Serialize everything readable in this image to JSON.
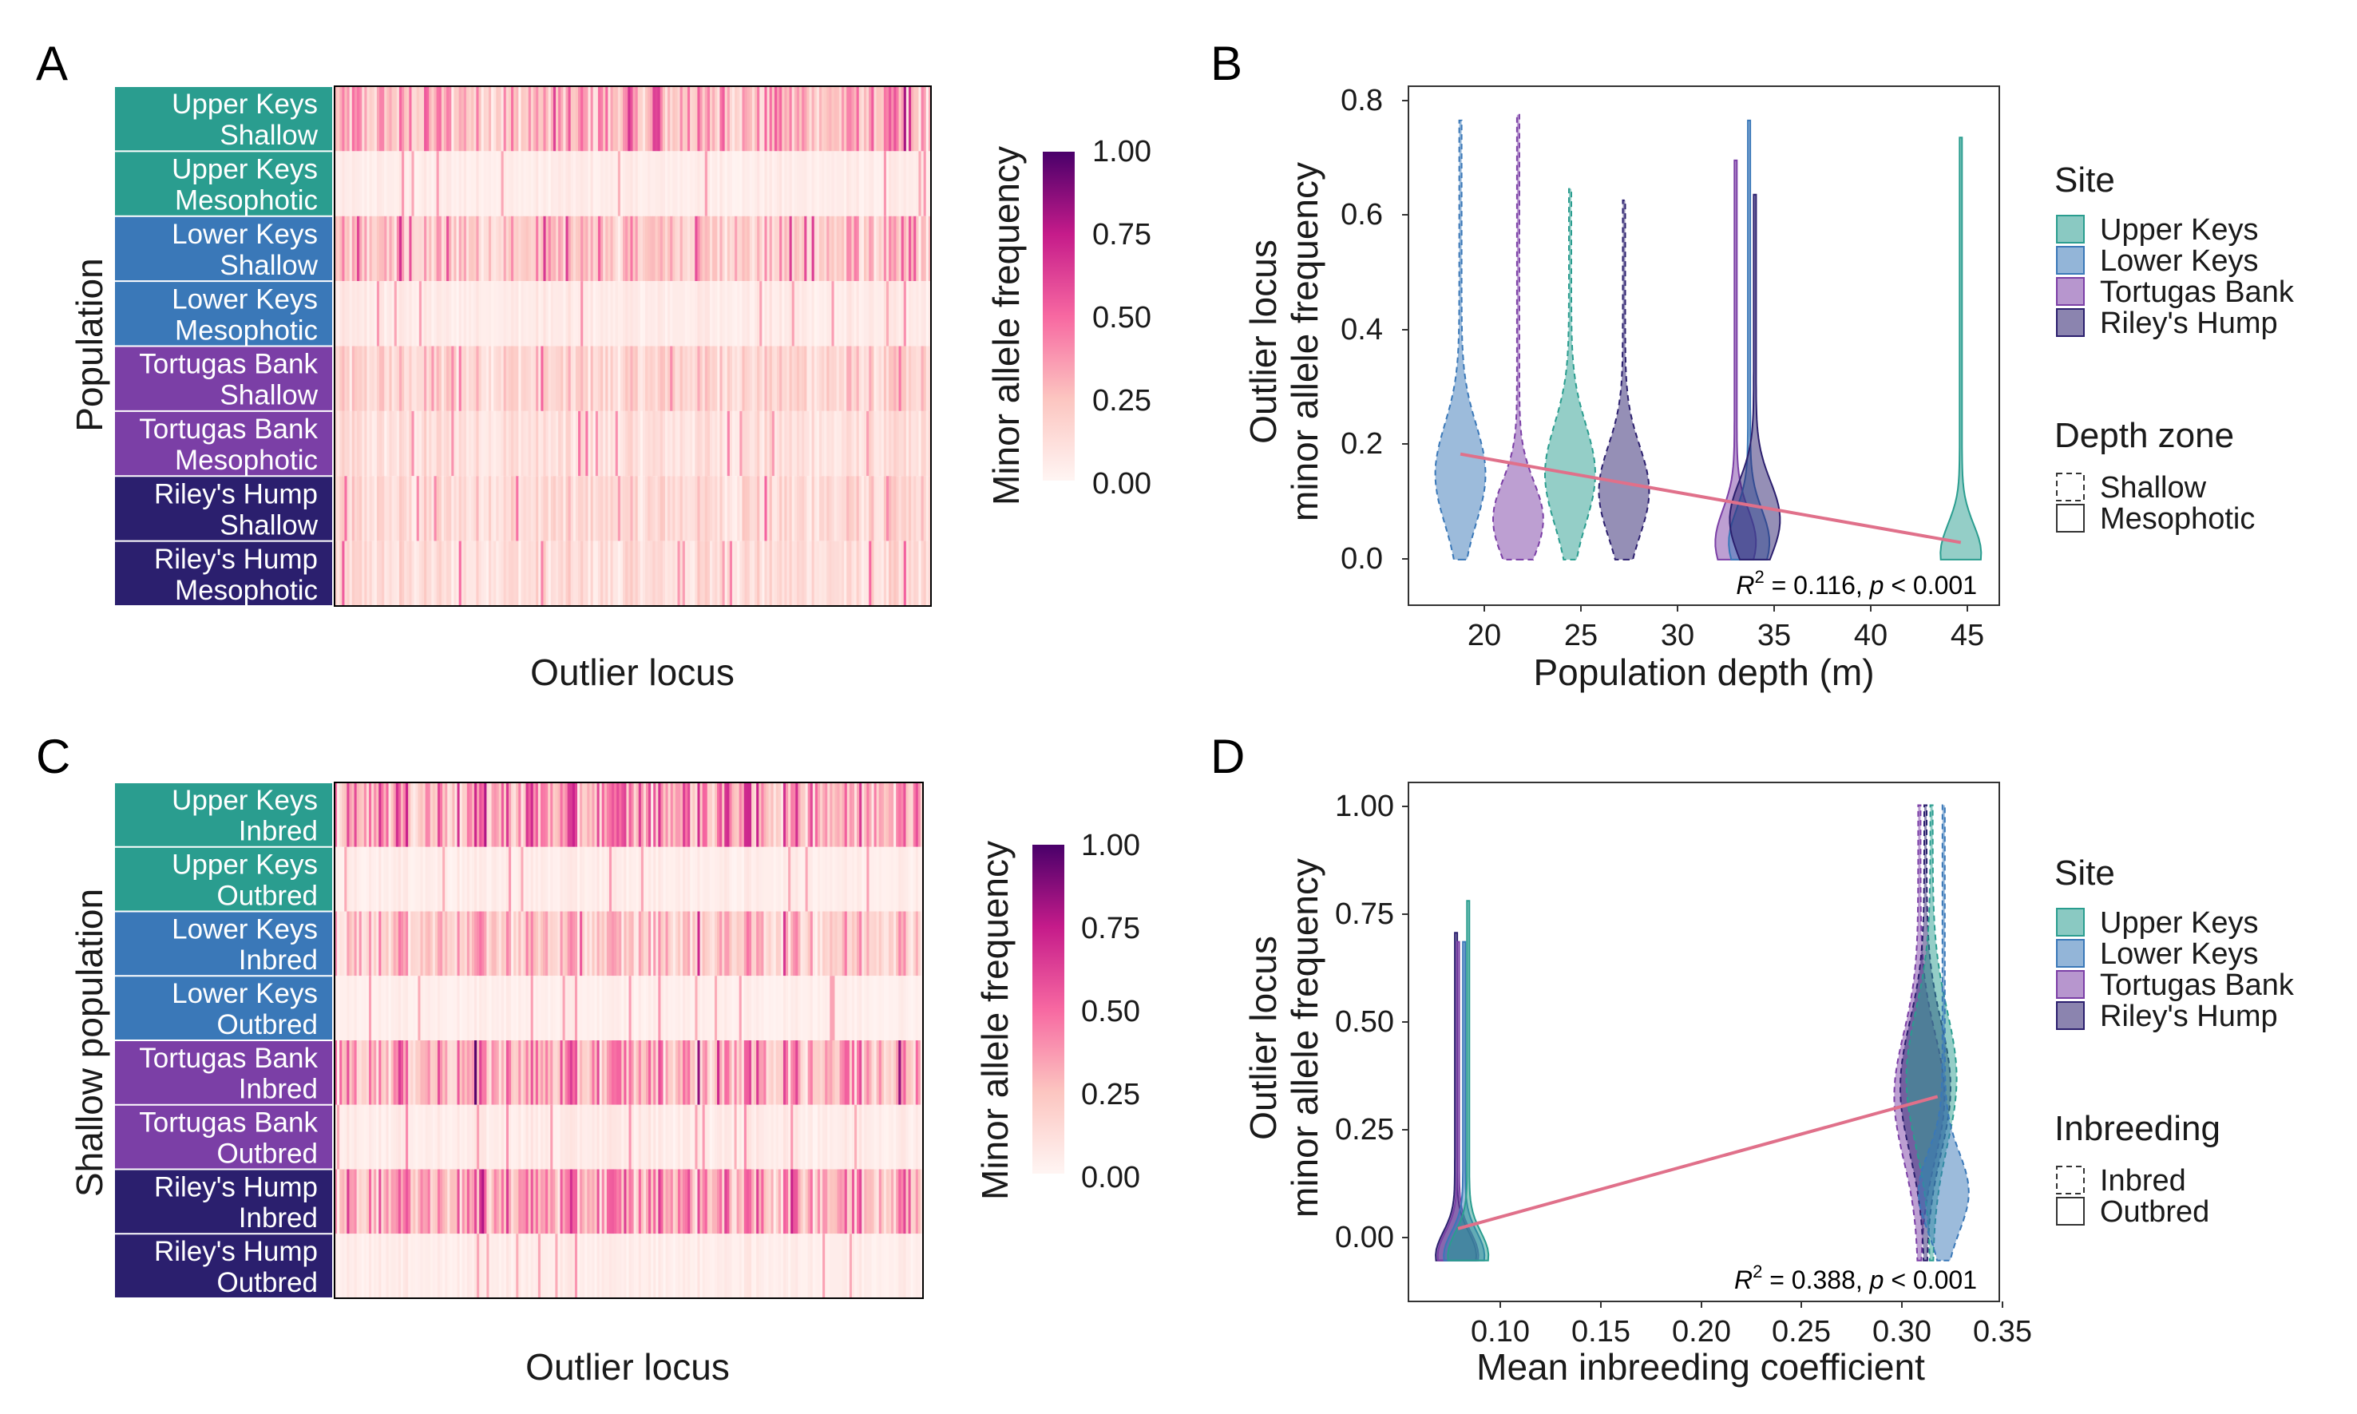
{
  "colors": {
    "site": {
      "Upper Keys": "#2a9d8f",
      "Lower Keys": "#3a78b8",
      "Tortugas Bank": "#7b3fa6",
      "Riley's Hump": "#2b1f6e"
    },
    "heat_low": "#fff5f3",
    "heat_mid": "#ef5f9e",
    "heat_high": "#49006a",
    "fit_line": "#e0708a"
  },
  "panels": {
    "A": {
      "letter": "A",
      "rows": [
        {
          "site": "Upper Keys",
          "group": "Shallow",
          "mean_freq": 0.3
        },
        {
          "site": "Upper Keys",
          "group": "Mesophotic",
          "mean_freq": 0.05
        },
        {
          "site": "Lower Keys",
          "group": "Shallow",
          "mean_freq": 0.24
        },
        {
          "site": "Lower Keys",
          "group": "Mesophotic",
          "mean_freq": 0.06
        },
        {
          "site": "Tortugas Bank",
          "group": "Shallow",
          "mean_freq": 0.18
        },
        {
          "site": "Tortugas Bank",
          "group": "Mesophotic",
          "mean_freq": 0.12
        },
        {
          "site": "Riley's Hump",
          "group": "Shallow",
          "mean_freq": 0.16
        },
        {
          "site": "Riley's Hump",
          "group": "Mesophotic",
          "mean_freq": 0.14
        }
      ],
      "ylabel": "Population",
      "xlabel": "Outlier locus",
      "colorbar_label": "Minor allele frequency",
      "colorbar_ticks": [
        "1.00",
        "0.75",
        "0.50",
        "0.25",
        "0.00"
      ]
    },
    "C": {
      "letter": "C",
      "rows": [
        {
          "site": "Upper Keys",
          "group": "Inbred",
          "mean_freq": 0.4
        },
        {
          "site": "Upper Keys",
          "group": "Outbred",
          "mean_freq": 0.05
        },
        {
          "site": "Lower Keys",
          "group": "Inbred",
          "mean_freq": 0.26
        },
        {
          "site": "Lower Keys",
          "group": "Outbred",
          "mean_freq": 0.04
        },
        {
          "site": "Tortugas Bank",
          "group": "Inbred",
          "mean_freq": 0.36
        },
        {
          "site": "Tortugas Bank",
          "group": "Outbred",
          "mean_freq": 0.06
        },
        {
          "site": "Riley's Hump",
          "group": "Inbred",
          "mean_freq": 0.38
        },
        {
          "site": "Riley's Hump",
          "group": "Outbred",
          "mean_freq": 0.05
        }
      ],
      "ylabel": "Shallow population",
      "xlabel": "Outlier locus",
      "colorbar_label": "Minor allele frequency",
      "colorbar_ticks": [
        "1.00",
        "0.75",
        "0.50",
        "0.25",
        "0.00"
      ]
    },
    "B": {
      "letter": "B",
      "xlabel": "Population depth (m)",
      "ylabel_line1": "Outlier locus",
      "ylabel_line2": "minor allele frequency",
      "xticks": [
        "20",
        "25",
        "30",
        "35",
        "40",
        "45"
      ],
      "yticks": [
        "0.8",
        "0.6",
        "0.4",
        "0.2",
        "0.0"
      ],
      "annotation": {
        "r2_label": "R",
        "sup": "2",
        "r2_text": " =  0.116,",
        "p_label": "p",
        "p_text": " < 0.001"
      },
      "legend_site_title": "Site",
      "legend_sites": [
        "Upper Keys",
        "Lower Keys",
        "Tortugas Bank",
        "Riley's Hump"
      ],
      "legend_group_title": "Depth zone",
      "legend_groups": [
        "Shallow",
        "Mesophotic"
      ]
    },
    "D": {
      "letter": "D",
      "xlabel": "Mean inbreeding coefficient",
      "ylabel_line1": "Outlier locus",
      "ylabel_line2": "minor allele frequency",
      "xticks": [
        "0.10",
        "0.15",
        "0.20",
        "0.25",
        "0.30",
        "0.35"
      ],
      "yticks": [
        "1.00",
        "0.75",
        "0.50",
        "0.25",
        "0.00"
      ],
      "annotation": {
        "r2_label": "R",
        "sup": "2",
        "r2_text": " =  0.388,",
        "p_label": "p",
        "p_text": " < 0.001"
      },
      "legend_site_title": "Site",
      "legend_sites": [
        "Upper Keys",
        "Lower Keys",
        "Tortugas Bank",
        "Riley's Hump"
      ],
      "legend_group_title": "Inbreeding",
      "legend_groups": [
        "Inbred",
        "Outbred"
      ]
    }
  },
  "chart_data": [
    {
      "type": "heatmap",
      "panel": "A",
      "rows": [
        "Upper Keys Shallow",
        "Upper Keys Mesophotic",
        "Lower Keys Shallow",
        "Lower Keys Mesophotic",
        "Tortugas Bank Shallow",
        "Tortugas Bank Mesophotic",
        "Riley's Hump Shallow",
        "Riley's Hump Mesophotic"
      ],
      "xlabel": "Outlier locus",
      "ylabel": "Population",
      "value_label": "Minor allele frequency",
      "value_range": [
        0,
        1
      ],
      "approx_mean_frequency_by_row": [
        0.3,
        0.05,
        0.24,
        0.06,
        0.18,
        0.12,
        0.16,
        0.14
      ]
    },
    {
      "type": "violin",
      "panel": "B",
      "xlabel": "Population depth (m)",
      "ylabel": "Outlier locus minor allele frequency",
      "xlim": [
        15.3,
        46
      ],
      "ylim": [
        -0.08,
        0.83
      ],
      "series": [
        {
          "name": "Lower Keys Shallow",
          "site": "Lower Keys",
          "zone": "Shallow",
          "x": 18.0,
          "ymin": 0.0,
          "ymax": 0.77,
          "median": 0.15
        },
        {
          "name": "Tortugas Bank Shallow",
          "site": "Tortugas Bank",
          "zone": "Shallow",
          "x": 21.0,
          "ymin": 0.0,
          "ymax": 0.78,
          "median": 0.07
        },
        {
          "name": "Upper Keys Shallow",
          "site": "Upper Keys",
          "zone": "Shallow",
          "x": 23.7,
          "ymin": 0.0,
          "ymax": 0.65,
          "median": 0.15
        },
        {
          "name": "Riley's Hump Shallow",
          "site": "Riley's Hump",
          "zone": "Shallow",
          "x": 26.5,
          "ymin": 0.0,
          "ymax": 0.63,
          "median": 0.12
        },
        {
          "name": "Tortugas Bank Mesophotic",
          "site": "Tortugas Bank",
          "zone": "Mesophotic",
          "x": 32.3,
          "ymin": 0.0,
          "ymax": 0.7,
          "median": 0.03
        },
        {
          "name": "Lower Keys Mesophotic",
          "site": "Lower Keys",
          "zone": "Mesophotic",
          "x": 33.0,
          "ymin": 0.0,
          "ymax": 0.77,
          "median": 0.03
        },
        {
          "name": "Riley's Hump Mesophotic",
          "site": "Riley's Hump",
          "zone": "Mesophotic",
          "x": 33.3,
          "ymin": 0.0,
          "ymax": 0.64,
          "median": 0.07
        },
        {
          "name": "Upper Keys Mesophotic",
          "site": "Upper Keys",
          "zone": "Mesophotic",
          "x": 44.0,
          "ymin": 0.0,
          "ymax": 0.74,
          "median": 0.01
        }
      ],
      "fit_line": {
        "x": [
          18.0,
          44.0
        ],
        "y": [
          0.185,
          0.03
        ]
      },
      "r2": 0.116,
      "p": "< 0.001"
    },
    {
      "type": "heatmap",
      "panel": "C",
      "rows": [
        "Upper Keys Inbred",
        "Upper Keys Outbred",
        "Lower Keys Inbred",
        "Lower Keys Outbred",
        "Tortugas Bank Inbred",
        "Tortugas Bank Outbred",
        "Riley's Hump Inbred",
        "Riley's Hump Outbred"
      ],
      "xlabel": "Outlier locus",
      "ylabel": "Shallow population",
      "value_label": "Minor allele frequency",
      "value_range": [
        0,
        1
      ],
      "approx_mean_frequency_by_row": [
        0.4,
        0.05,
        0.26,
        0.04,
        0.36,
        0.06,
        0.38,
        0.05
      ]
    },
    {
      "type": "violin",
      "panel": "D",
      "xlabel": "Mean inbreeding coefficient",
      "ylabel": "Outlier locus minor allele frequency",
      "xlim": [
        0.0635,
        0.3555
      ],
      "ylim": [
        -0.09,
        1.05
      ],
      "series": [
        {
          "name": "Riley's Hump Outbred",
          "site": "Riley's Hump",
          "zone": "Outbred",
          "x": 0.087,
          "ymin": 0.0,
          "ymax": 0.72,
          "median": 0.01
        },
        {
          "name": "Tortugas Bank Outbred",
          "site": "Tortugas Bank",
          "zone": "Outbred",
          "x": 0.088,
          "ymin": 0.0,
          "ymax": 0.7,
          "median": 0.01
        },
        {
          "name": "Lower Keys Outbred",
          "site": "Lower Keys",
          "zone": "Outbred",
          "x": 0.091,
          "ymin": 0.0,
          "ymax": 0.7,
          "median": 0.01
        },
        {
          "name": "Upper Keys Outbred",
          "site": "Upper Keys",
          "zone": "Outbred",
          "x": 0.093,
          "ymin": 0.0,
          "ymax": 0.79,
          "median": 0.01
        },
        {
          "name": "Tortugas Bank Inbred",
          "site": "Tortugas Bank",
          "zone": "Inbred",
          "x": 0.316,
          "ymin": 0.0,
          "ymax": 1.0,
          "median": 0.36
        },
        {
          "name": "Riley's Hump Inbred",
          "site": "Riley's Hump",
          "zone": "Inbred",
          "x": 0.319,
          "ymin": 0.0,
          "ymax": 1.0,
          "median": 0.38
        },
        {
          "name": "Upper Keys Inbred",
          "site": "Upper Keys",
          "zone": "Inbred",
          "x": 0.322,
          "ymin": 0.0,
          "ymax": 1.0,
          "median": 0.4
        },
        {
          "name": "Lower Keys Inbred",
          "site": "Lower Keys",
          "zone": "Inbred",
          "x": 0.328,
          "ymin": 0.0,
          "ymax": 1.0,
          "median": 0.15
        }
      ],
      "fit_line": {
        "x": [
          0.088,
          0.325
        ],
        "y": [
          0.07,
          0.36
        ]
      },
      "r2": 0.388,
      "p": "< 0.001"
    }
  ]
}
